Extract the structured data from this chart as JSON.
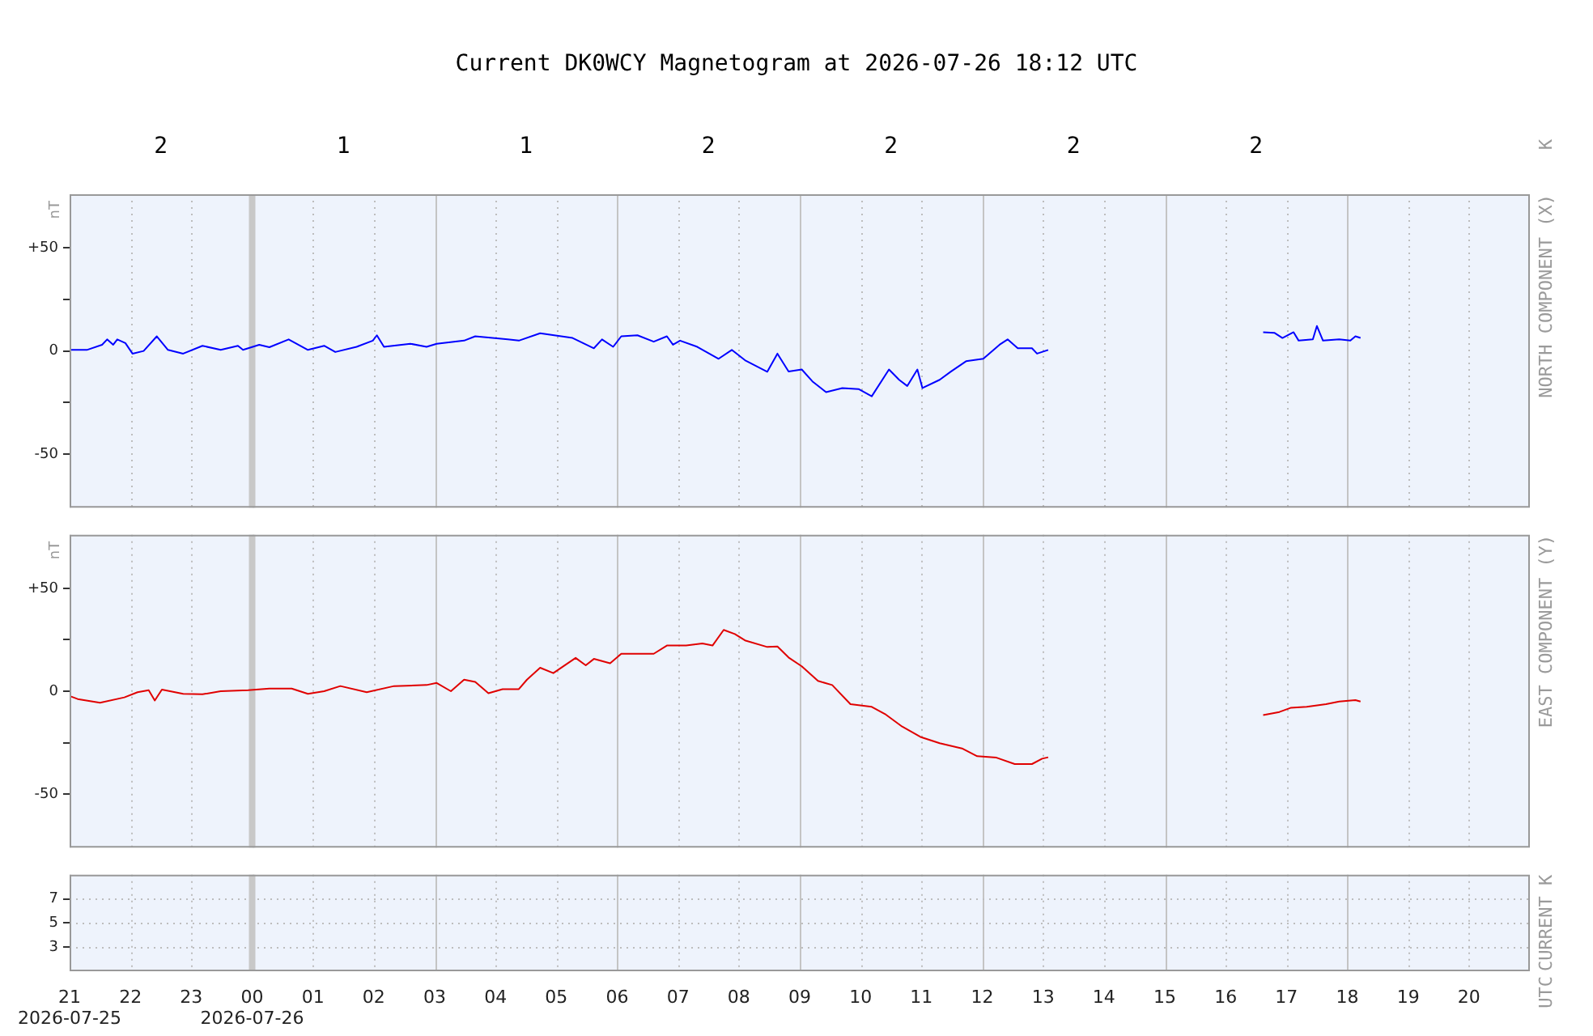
{
  "chart_data": [
    {
      "type": "line",
      "title": "Current DK0WCY Magnetogram at 2026-07-26 18:12 UTC",
      "ylabel": "nT",
      "y2label": "NORTH COMPONENT (X)",
      "annotations": [
        "2",
        "1",
        "1",
        "2",
        "2",
        "2",
        "2",
        "K"
      ],
      "x": [
        "2026-07-25T21:01",
        "2026-07-25T21:17",
        "2026-07-25T21:32",
        "2026-07-25T21:37",
        "2026-07-25T21:43",
        "2026-07-25T21:47",
        "2026-07-25T21:55",
        "2026-07-25T22:02",
        "2026-07-25T22:13",
        "2026-07-25T22:26",
        "2026-07-25T22:37",
        "2026-07-25T22:52",
        "2026-07-25T23:11",
        "2026-07-25T23:29",
        "2026-07-25T23:46",
        "2026-07-25T23:51",
        "2026-07-26T00:07",
        "2026-07-26T00:17",
        "2026-07-26T00:36",
        "2026-07-26T00:55",
        "2026-07-26T01:11",
        "2026-07-26T01:22",
        "2026-07-26T01:43",
        "2026-07-26T01:59",
        "2026-07-26T02:03",
        "2026-07-26T02:10",
        "2026-07-26T02:36",
        "2026-07-26T02:52",
        "2026-07-26T03:02",
        "2026-07-26T03:29",
        "2026-07-26T03:40",
        "2026-07-26T04:12",
        "2026-07-26T04:23",
        "2026-07-26T04:44",
        "2026-07-26T05:16",
        "2026-07-26T05:37",
        "2026-07-26T05:45",
        "2026-07-26T05:56",
        "2026-07-26T06:04",
        "2026-07-26T06:20",
        "2026-07-26T06:36",
        "2026-07-26T06:49",
        "2026-07-26T06:55",
        "2026-07-26T07:02",
        "2026-07-26T07:19",
        "2026-07-26T07:40",
        "2026-07-26T07:53",
        "2026-07-26T08:06",
        "2026-07-26T08:28",
        "2026-07-26T08:38",
        "2026-07-26T08:49",
        "2026-07-26T09:02",
        "2026-07-26T09:13",
        "2026-07-26T09:26",
        "2026-07-26T09:42",
        "2026-07-26T09:58",
        "2026-07-26T10:11",
        "2026-07-26T10:28",
        "2026-07-26T10:38",
        "2026-07-26T10:46",
        "2026-07-26T10:56",
        "2026-07-26T11:01",
        "2026-07-26T11:18",
        "2026-07-26T11:29",
        "2026-07-26T11:44",
        "2026-07-26T12:01",
        "2026-07-26T12:17",
        "2026-07-26T12:25",
        "2026-07-26T12:35",
        "2026-07-26T12:49",
        "2026-07-26T12:54",
        "2026-07-26T13:05",
        "2026-07-26T14:30",
        "2026-07-26T16:37",
        "2026-07-26T16:48",
        "2026-07-26T16:56",
        "2026-07-26T17:07",
        "2026-07-26T17:12",
        "2026-07-26T17:26",
        "2026-07-26T17:30",
        "2026-07-26T17:36",
        "2026-07-26T17:52",
        "2026-07-26T18:03",
        "2026-07-26T18:08",
        "2026-07-26T18:13"
      ],
      "series": [
        {
          "color": "#0000ff",
          "values": [
            0.5,
            0.5,
            3,
            5.6,
            3,
            5.6,
            3.8,
            -1.3,
            0,
            7.1,
            0.5,
            -1.3,
            2.5,
            0.5,
            2.5,
            0.5,
            3,
            1.8,
            5.6,
            0.5,
            2.5,
            -0.5,
            2,
            5,
            7.6,
            2,
            3.5,
            2,
            3.5,
            5,
            7.1,
            5.6,
            5,
            8.6,
            6.3,
            1.3,
            5.6,
            2,
            7.1,
            7.6,
            4.5,
            7.1,
            3,
            5,
            2,
            -3.8,
            0.5,
            -4.5,
            -10.1,
            -1.3,
            -10,
            -9,
            -15,
            -20,
            -18,
            -18.5,
            -22,
            -9,
            -14,
            -17,
            -9,
            -18,
            -14,
            -10,
            -5,
            -3.8,
            3,
            5.6,
            1.3,
            1.3,
            -1.3,
            0.5,
            null,
            9.1,
            8.8,
            6.3,
            9.1,
            5,
            5.6,
            12.1,
            5,
            5.6,
            5,
            7.1,
            6.3
          ]
        }
      ],
      "xlim": [
        "2026-07-25T21:00",
        "2026-07-26T21:00"
      ],
      "ylim": [
        -76,
        76
      ],
      "yticks": [
        {
          "value": 50,
          "label": "+50"
        },
        {
          "value": 25,
          "label": null
        },
        0,
        {
          "value": -25,
          "label": null
        },
        -50
      ],
      "ref_lines": [
        {
          "axis": "x",
          "value": "2026-07-26T00:00",
          "color": "#c8c8c8"
        }
      ],
      "grid": "x",
      "tick_labels": "y",
      "marker": "none",
      "line_style": "solid"
    },
    {
      "type": "line",
      "ylabel": "nT",
      "y2label": "EAST COMPONENT (Y)",
      "x": [
        "2026-07-25T21:01",
        "2026-07-25T21:08",
        "2026-07-25T21:30",
        "2026-07-25T21:54",
        "2026-07-25T22:07",
        "2026-07-25T22:18",
        "2026-07-25T22:24",
        "2026-07-25T22:31",
        "2026-07-25T22:52",
        "2026-07-25T23:11",
        "2026-07-25T23:29",
        "2026-07-25T23:56",
        "2026-07-26T00:17",
        "2026-07-26T00:39",
        "2026-07-26T00:55",
        "2026-07-26T01:11",
        "2026-07-26T01:27",
        "2026-07-26T01:53",
        "2026-07-26T02:20",
        "2026-07-26T02:52",
        "2026-07-26T03:02",
        "2026-07-26T03:16",
        "2026-07-26T03:29",
        "2026-07-26T03:40",
        "2026-07-26T03:53",
        "2026-07-26T04:07",
        "2026-07-26T04:23",
        "2026-07-26T04:31",
        "2026-07-26T04:44",
        "2026-07-26T04:57",
        "2026-07-26T05:19",
        "2026-07-26T05:29",
        "2026-07-26T05:37",
        "2026-07-26T05:53",
        "2026-07-26T06:04",
        "2026-07-26T06:36",
        "2026-07-26T06:49",
        "2026-07-26T07:08",
        "2026-07-26T07:24",
        "2026-07-26T07:34",
        "2026-07-26T07:45",
        "2026-07-26T07:56",
        "2026-07-26T08:06",
        "2026-07-26T08:28",
        "2026-07-26T08:38",
        "2026-07-26T08:49",
        "2026-07-26T09:02",
        "2026-07-26T09:18",
        "2026-07-26T09:32",
        "2026-07-26T09:50",
        "2026-07-26T10:11",
        "2026-07-26T10:25",
        "2026-07-26T10:41",
        "2026-07-26T10:59",
        "2026-07-26T11:18",
        "2026-07-26T11:40",
        "2026-07-26T11:55",
        "2026-07-26T12:14",
        "2026-07-26T12:32",
        "2026-07-26T12:49",
        "2026-07-26T12:59",
        "2026-07-26T13:05",
        "2026-07-26T14:30",
        "2026-07-26T16:37",
        "2026-07-26T16:53",
        "2026-07-26T17:04",
        "2026-07-26T17:20",
        "2026-07-26T17:39",
        "2026-07-26T17:52",
        "2026-07-26T18:08",
        "2026-07-26T18:13"
      ],
      "series": [
        {
          "color": "#e00000",
          "values": [
            -2.5,
            -3.8,
            -5.6,
            -3,
            -0.5,
            0.5,
            -4.5,
            0.8,
            -1.3,
            -1.5,
            0,
            0.5,
            1.3,
            1.3,
            -1.3,
            0,
            2.5,
            -0.5,
            2.5,
            3,
            4,
            0,
            5.6,
            4.5,
            -1,
            1,
            1,
            5.6,
            11.4,
            8.8,
            16.2,
            12.6,
            15.7,
            13.6,
            18.2,
            18.2,
            22.2,
            22.2,
            23.2,
            22.2,
            29.8,
            27.8,
            24.7,
            21.5,
            21.7,
            16.4,
            12.1,
            5,
            3,
            -6.3,
            -7.6,
            -11.4,
            -17.2,
            -22.2,
            -25.3,
            -27.8,
            -31.6,
            -32.3,
            -35.4,
            -35.4,
            -32.8,
            -32.1,
            null,
            -11.6,
            -10.1,
            -8.1,
            -7.6,
            -6.3,
            -5,
            -4.3,
            -5
          ]
        }
      ],
      "xlim": [
        "2026-07-25T21:00",
        "2026-07-26T21:00"
      ],
      "ylim": [
        -76,
        76
      ],
      "yticks": [
        {
          "value": 50,
          "label": "+50"
        },
        {
          "value": 25,
          "label": null
        },
        0,
        {
          "value": -25,
          "label": null
        },
        -50
      ],
      "ref_lines": [
        {
          "axis": "x",
          "value": "2026-07-26T00:00",
          "color": "#c8c8c8"
        }
      ],
      "grid": "x",
      "tick_labels": "y",
      "marker": "none",
      "line_style": "solid"
    },
    {
      "type": "line",
      "y2label": "CURRENT K",
      "annotations": [
        "UTC"
      ],
      "xlim": [
        "2026-07-25T21:00",
        "2026-07-26T21:00"
      ],
      "ylim": [
        1,
        9
      ],
      "xticks": [
        {
          "value": "2026-07-25T21:00",
          "label": "21\n2026-07-25"
        },
        {
          "value": "2026-07-25T22:00",
          "label": "22"
        },
        {
          "value": "2026-07-25T23:00",
          "label": "23"
        },
        {
          "value": "2026-07-26T00:00",
          "label": "00\n2026-07-26"
        },
        {
          "value": "2026-07-26T01:00",
          "label": "01"
        },
        {
          "value": "2026-07-26T02:00",
          "label": "02"
        },
        {
          "value": "2026-07-26T03:00",
          "label": "03"
        },
        {
          "value": "2026-07-26T04:00",
          "label": "04"
        },
        {
          "value": "2026-07-26T05:00",
          "label": "05"
        },
        {
          "value": "2026-07-26T06:00",
          "label": "06"
        },
        {
          "value": "2026-07-26T07:00",
          "label": "07"
        },
        {
          "value": "2026-07-26T08:00",
          "label": "08"
        },
        {
          "value": "2026-07-26T09:00",
          "label": "09"
        },
        {
          "value": "2026-07-26T10:00",
          "label": "10"
        },
        {
          "value": "2026-07-26T11:00",
          "label": "11"
        },
        {
          "value": "2026-07-26T12:00",
          "label": "12"
        },
        {
          "value": "2026-07-26T13:00",
          "label": "13"
        },
        {
          "value": "2026-07-26T14:00",
          "label": "14"
        },
        {
          "value": "2026-07-26T15:00",
          "label": "15"
        },
        {
          "value": "2026-07-26T16:00",
          "label": "16"
        },
        {
          "value": "2026-07-26T17:00",
          "label": "17"
        },
        {
          "value": "2026-07-26T18:00",
          "label": "18"
        },
        {
          "value": "2026-07-26T19:00",
          "label": "19"
        },
        {
          "value": "2026-07-26T20:00",
          "label": "20"
        }
      ],
      "yticks": [
        7,
        5,
        3
      ],
      "ref_lines": [
        {
          "axis": "x",
          "value": "2026-07-26T00:00",
          "color": "#c8c8c8"
        }
      ],
      "grid": true
    }
  ]
}
